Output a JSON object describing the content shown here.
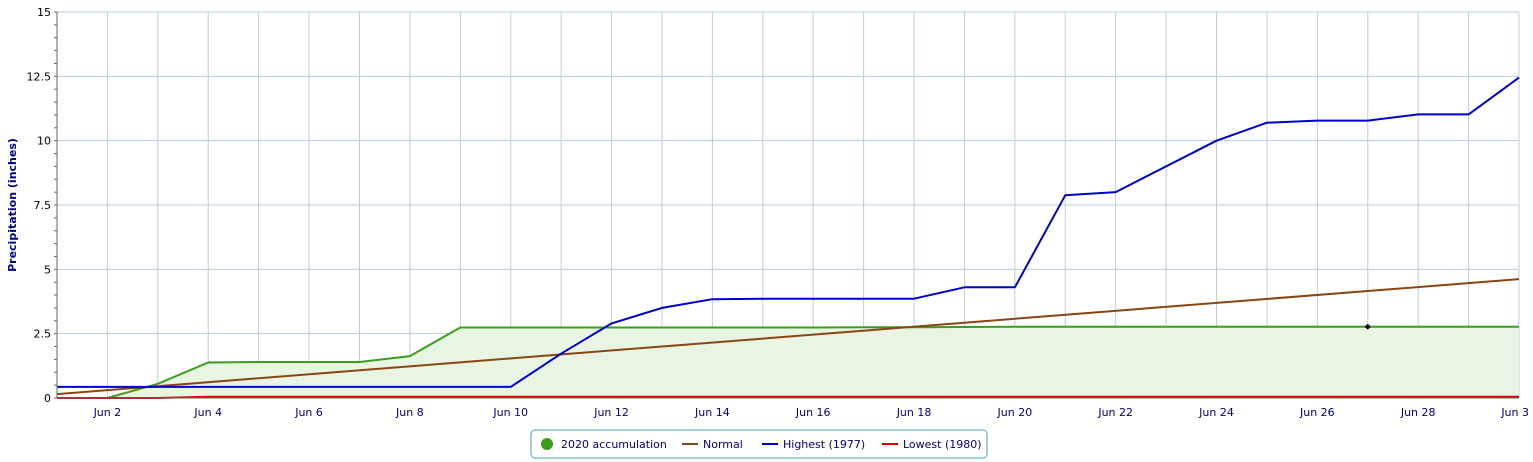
{
  "chart_data": {
    "type": "line",
    "title": "",
    "xlabel": "",
    "ylabel": "Precipitation (inches)",
    "xlim": [
      1,
      30
    ],
    "ylim": [
      0,
      15
    ],
    "grid": true,
    "legend_position": "bottom-center",
    "x_ticks": [
      {
        "x": 2,
        "label": "Jun 2"
      },
      {
        "x": 4,
        "label": "Jun 4"
      },
      {
        "x": 6,
        "label": "Jun 6"
      },
      {
        "x": 8,
        "label": "Jun 8"
      },
      {
        "x": 10,
        "label": "Jun 10"
      },
      {
        "x": 12,
        "label": "Jun 12"
      },
      {
        "x": 14,
        "label": "Jun 14"
      },
      {
        "x": 16,
        "label": "Jun 16"
      },
      {
        "x": 18,
        "label": "Jun 18"
      },
      {
        "x": 20,
        "label": "Jun 20"
      },
      {
        "x": 22,
        "label": "Jun 22"
      },
      {
        "x": 24,
        "label": "Jun 24"
      },
      {
        "x": 26,
        "label": "Jun 26"
      },
      {
        "x": 28,
        "label": "Jun 28"
      },
      {
        "x": 30,
        "label": "Jun 3"
      }
    ],
    "y_ticks": [
      {
        "y": 0,
        "label": "0"
      },
      {
        "y": 2.5,
        "label": "2.5"
      },
      {
        "y": 5,
        "label": "5"
      },
      {
        "y": 7.5,
        "label": "7.5"
      },
      {
        "y": 10,
        "label": "10"
      },
      {
        "y": 12.5,
        "label": "12.5"
      },
      {
        "y": 15,
        "label": "15"
      }
    ],
    "x_days": [
      1,
      2,
      3,
      4,
      5,
      6,
      7,
      8,
      9,
      10,
      11,
      12,
      13,
      14,
      15,
      16,
      17,
      18,
      19,
      20,
      21,
      22,
      23,
      24,
      25,
      26,
      27,
      28,
      29,
      30
    ],
    "series": [
      {
        "name": "2020 accumulation",
        "color": "#3a9e1c",
        "fill": "#e9f5e3",
        "marker": "circle",
        "x": [
          1,
          2,
          3,
          4,
          5,
          6,
          7,
          8,
          9,
          10,
          11,
          12,
          13,
          14,
          15,
          16,
          17,
          18,
          19,
          20,
          21,
          22,
          23,
          24,
          25,
          26,
          27,
          28,
          29,
          30
        ],
        "values": [
          0,
          0,
          0.55,
          1.38,
          1.4,
          1.4,
          1.4,
          1.63,
          2.74,
          2.74,
          2.74,
          2.74,
          2.74,
          2.74,
          2.74,
          2.74,
          2.75,
          2.75,
          2.76,
          2.77,
          2.77,
          2.77,
          2.77,
          2.77,
          2.77,
          2.77,
          2.77,
          2.77,
          2.77,
          2.77
        ]
      },
      {
        "name": "Normal",
        "color": "#8b4513",
        "x": [
          1,
          30
        ],
        "values": [
          0.15,
          4.62
        ]
      },
      {
        "name": "Highest (1977)",
        "color": "#0000cc",
        "x": [
          1,
          2,
          3,
          4,
          5,
          6,
          7,
          8,
          9,
          10,
          11,
          12,
          13,
          14,
          15,
          16,
          17,
          18,
          19,
          20,
          21,
          22,
          23,
          24,
          25,
          26,
          27,
          28,
          29,
          30
        ],
        "values": [
          0.43,
          0.43,
          0.43,
          0.43,
          0.43,
          0.43,
          0.43,
          0.43,
          0.43,
          0.43,
          1.72,
          2.9,
          3.5,
          3.84,
          3.86,
          3.86,
          3.86,
          3.86,
          4.3,
          4.3,
          7.88,
          8.0,
          9.0,
          10.0,
          10.7,
          10.78,
          10.78,
          11.02,
          11.02,
          12.45
        ]
      },
      {
        "name": "Lowest (1980)",
        "color": "#dd0000",
        "x": [
          1,
          2,
          3,
          4,
          5,
          6,
          7,
          8,
          9,
          10,
          11,
          12,
          13,
          14,
          15,
          16,
          17,
          18,
          19,
          20,
          21,
          22,
          23,
          24,
          25,
          26,
          27,
          28,
          29,
          30
        ],
        "values": [
          0,
          0,
          0,
          0.05,
          0.05,
          0.05,
          0.05,
          0.05,
          0.05,
          0.05,
          0.05,
          0.05,
          0.05,
          0.05,
          0.05,
          0.05,
          0.05,
          0.05,
          0.05,
          0.05,
          0.05,
          0.05,
          0.05,
          0.05,
          0.05,
          0.05,
          0.05,
          0.05,
          0.05,
          0.05
        ]
      }
    ],
    "annotations": [
      {
        "type": "point",
        "x": 27,
        "y": 2.77,
        "color": "#000000"
      }
    ]
  }
}
